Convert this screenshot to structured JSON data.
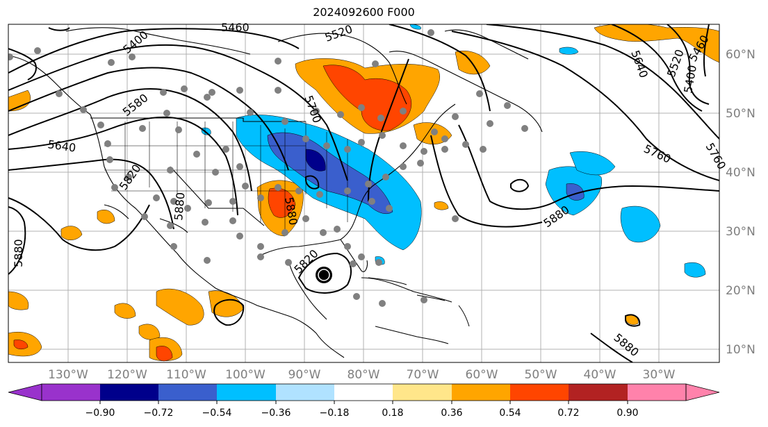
{
  "title": "2024092600 F000",
  "map": {
    "lon_labels": [
      "130°W",
      "120°W",
      "110°W",
      "100°W",
      "90°W",
      "80°W",
      "70°W",
      "60°W",
      "50°W",
      "40°W",
      "30°W"
    ],
    "lat_labels": [
      "60°N",
      "50°N",
      "40°N",
      "30°N",
      "20°N",
      "10°N"
    ],
    "contour_labels": [
      "5460",
      "5520",
      "5580",
      "5640",
      "5700",
      "5760",
      "5820",
      "5880",
      "5400",
      "5460",
      "5520",
      "5640",
      "5760",
      "5880",
      "5820",
      "5880",
      "5880",
      "5880",
      "5400"
    ],
    "colors": {
      "purple": "#9932cc",
      "navy": "#00008b",
      "royal_blue": "#3a5fcd",
      "deep_sky": "#00bfff",
      "light_sky": "#b0e2ff",
      "white": "#ffffff",
      "light_yellow": "#ffe68a",
      "orange": "#ffa500",
      "orange_red": "#ff4500",
      "firebrick": "#b22222",
      "pink": "#ff82ab",
      "station_dot": "#808080"
    }
  },
  "colorbar": {
    "tick_labels": [
      "−0.90",
      "−0.72",
      "−0.54",
      "−0.36",
      "−0.18",
      "0.18",
      "0.36",
      "0.54",
      "0.72",
      "0.90"
    ]
  }
}
